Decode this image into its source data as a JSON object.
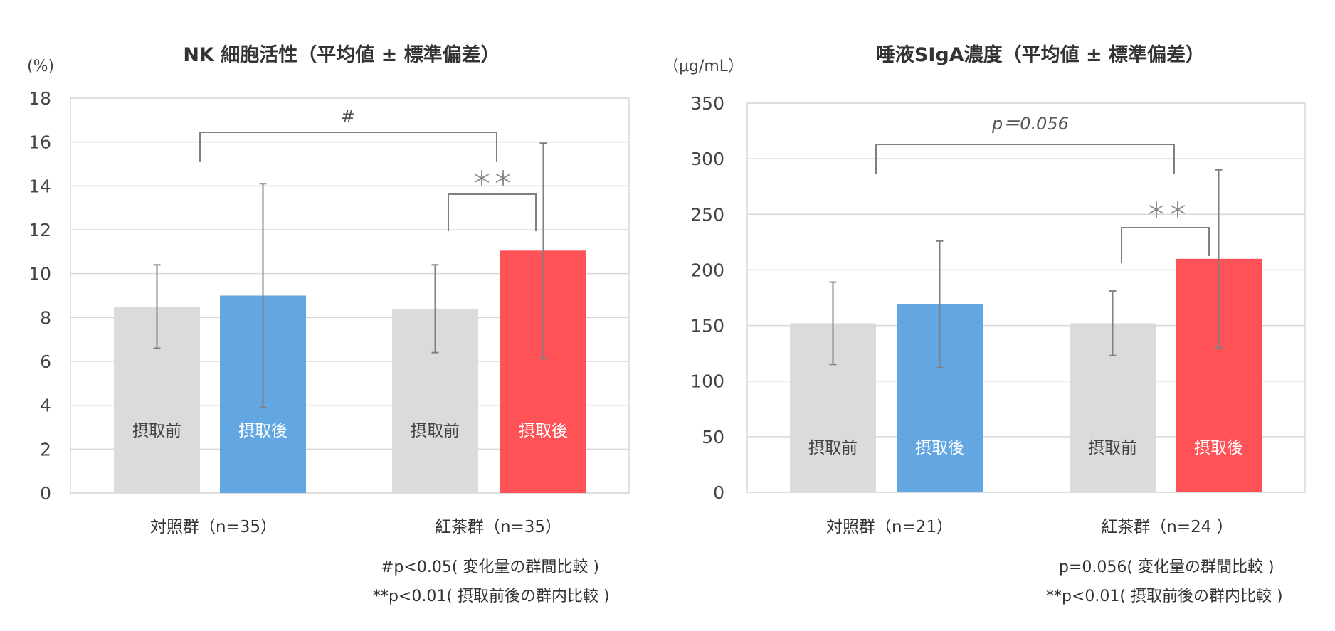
{
  "chart_data": [
    {
      "type": "bar",
      "title": "NK 細胞活性（平均値 ± 標準偏差）",
      "ylabel": "(%)",
      "ylim": [
        0,
        18
      ],
      "yticks": [
        "0",
        "2",
        "4",
        "6",
        "8",
        "10",
        "12",
        "14",
        "16",
        "18"
      ],
      "groups": [
        "対照群（n=35）",
        "紅茶群（n=35）"
      ],
      "bars": [
        {
          "group": 0,
          "label": "摂取前",
          "value": 8.5,
          "sd": 1.9,
          "color": "#dcdbdc",
          "text_color": "#444444"
        },
        {
          "group": 0,
          "label": "摂取後",
          "value": 9.0,
          "sd": 5.1,
          "color": "#62a6e2",
          "text_color": "#ffffff"
        },
        {
          "group": 1,
          "label": "摂取前",
          "value": 8.4,
          "sd": 2.0,
          "color": "#dcdbdc",
          "text_color": "#444444"
        },
        {
          "group": 1,
          "label": "摂取後",
          "value": 11.05,
          "sd": 4.9,
          "color": "#ff5257",
          "text_color": "#ffffff"
        }
      ],
      "between_label": "#",
      "within_label": "＊＊",
      "notes": [
        "#p<0.05( 変化量の群間比較 )",
        "**p<0.01( 摂取前後の群内比較 )"
      ]
    },
    {
      "type": "bar",
      "title": "唾液SIgA濃度（平均値 ± 標準偏差）",
      "ylabel": "（μg/mL）",
      "ylim": [
        0,
        350
      ],
      "yticks": [
        "0",
        "50",
        "100",
        "150",
        "200",
        "250",
        "300",
        "350"
      ],
      "groups": [
        "対照群（n=21）",
        "紅茶群（n=24 ）"
      ],
      "bars": [
        {
          "group": 0,
          "label": "摂取前",
          "value": 152,
          "sd": 37,
          "color": "#dcdbdc",
          "text_color": "#444444"
        },
        {
          "group": 0,
          "label": "摂取後",
          "value": 169,
          "sd": 57,
          "color": "#62a6e2",
          "text_color": "#ffffff"
        },
        {
          "group": 1,
          "label": "摂取前",
          "value": 152,
          "sd": 29,
          "color": "#dcdbdc",
          "text_color": "#444444"
        },
        {
          "group": 1,
          "label": "摂取後",
          "value": 210,
          "sd": 80,
          "color": "#ff5257",
          "text_color": "#ffffff"
        }
      ],
      "between_label": "p＝0.056",
      "within_label": "＊＊",
      "notes": [
        "p=0.056( 変化量の群間比較 )",
        "**p<0.01( 摂取前後の群内比較 )"
      ]
    }
  ]
}
